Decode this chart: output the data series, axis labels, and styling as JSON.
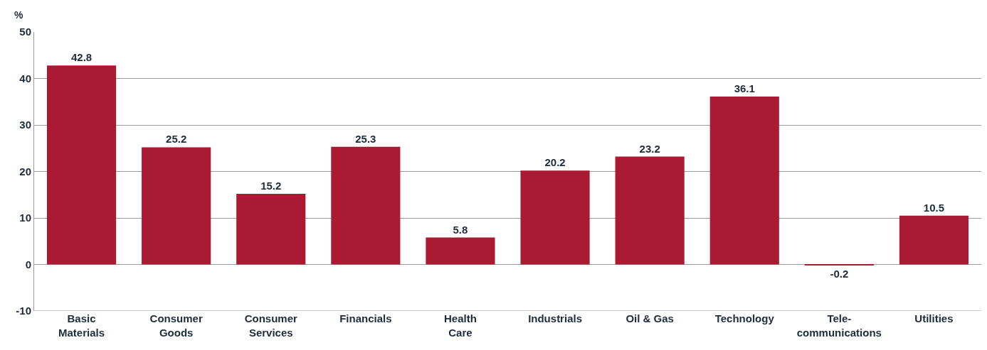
{
  "chart_data": {
    "type": "bar",
    "ylabel": "%",
    "categories": [
      "Basic Materials",
      "Consumer Goods",
      "Consumer Services",
      "Financials",
      "Health Care",
      "Industrials",
      "Oil & Gas",
      "Technology",
      "Tele-communications",
      "Utilities"
    ],
    "values": [
      42.8,
      25.2,
      15.2,
      25.3,
      5.8,
      20.2,
      23.2,
      36.1,
      -0.2,
      10.5
    ],
    "color": "#ab1a33",
    "ylim": [
      -10,
      50
    ],
    "yticks": [
      -10,
      0,
      10,
      20,
      30,
      40,
      50
    ],
    "grid": "y",
    "data_labels": true
  }
}
